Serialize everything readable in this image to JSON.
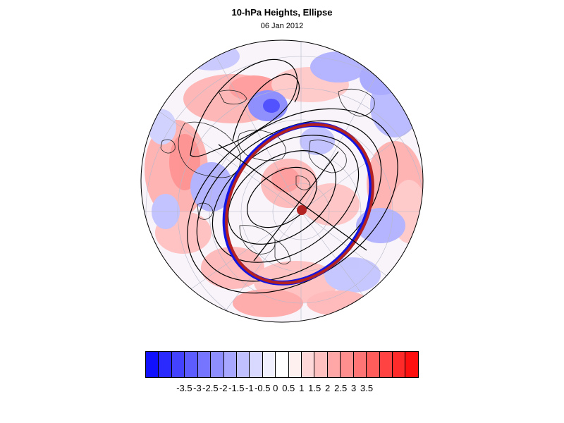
{
  "header": {
    "title": "10-hPa Heights, Ellipse",
    "date": "06 Jan 2012"
  },
  "map": {
    "projection": "polar-stereographic-north",
    "fill_variable": "10-hPa height anomaly",
    "contour_color": "#000000",
    "ellipse_outer_color": "#1414e0",
    "ellipse_inner_color": "#b22222",
    "centroid_color": "#b22222"
  },
  "colorbar": {
    "ticks": [
      "-3.5",
      "-3",
      "-2.5",
      "-2",
      "-1.5",
      "-1",
      "-0.5",
      "0",
      "0.5",
      "1",
      "1.5",
      "2",
      "2.5",
      "3",
      "3.5"
    ],
    "colors": [
      "#1010ff",
      "#2a2aff",
      "#4343ff",
      "#5c5cff",
      "#7575ff",
      "#8e8eff",
      "#a7a7ff",
      "#c0c0ff",
      "#d9d9ff",
      "#f0f0ff",
      "#ffffff",
      "#fff0f0",
      "#ffd9d9",
      "#ffc0c0",
      "#ffa7a7",
      "#ff8e8e",
      "#ff7575",
      "#ff5c5c",
      "#ff4343",
      "#ff2a2a",
      "#ff1010"
    ]
  }
}
